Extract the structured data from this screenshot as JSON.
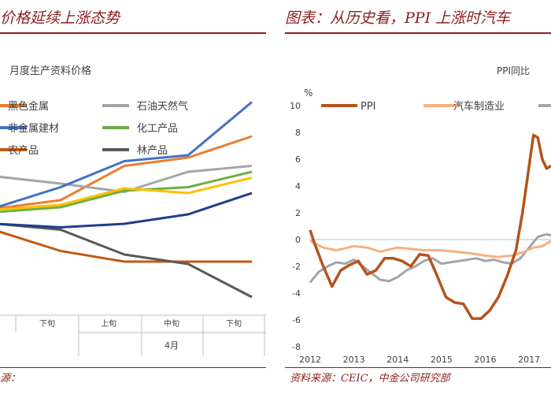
{
  "left_panel": {
    "header": "价格延续上涨态势",
    "source": "源："
  },
  "right_panel": {
    "header": "图表：从历史看，PPI 上涨时汽车",
    "source": "资料来源：CEIC，中金公司研究部"
  },
  "colors": {
    "title_red": "#8c1d1d",
    "black_metal": "#ed7d31",
    "oil_gas": "#a5a5a5",
    "non_metal": "#4472c4",
    "chemical": "#70ad47",
    "farm": "#c55a11",
    "forest": "#595959",
    "extra_yellow": "#ffc000",
    "extra_navy": "#1f3e8a",
    "ppi": "#b5541c",
    "auto": "#f4b183",
    "grey3": "#a5a5a5"
  },
  "chart_data": [
    {
      "type": "line",
      "title": "月度生产资料价格",
      "categories": [
        "",
        "下旬",
        "上旬",
        "中旬",
        "下旬"
      ],
      "group_label": "4月",
      "legend": [
        "黑色金属",
        "石油天然气",
        "非金属建材",
        "化工产品",
        "农产品",
        "林产品"
      ],
      "series": [
        {
          "name": "黑色金属",
          "color_key": "black_metal",
          "values": [
            -0.3,
            0.4,
            3.3,
            4.0,
            5.8
          ]
        },
        {
          "name": "石油天然气",
          "color_key": "oil_gas",
          "values": [
            2.4,
            1.8,
            1.1,
            2.8,
            3.3
          ]
        },
        {
          "name": "非金属建材",
          "color_key": "non_metal",
          "values": [
            -0.2,
            1.5,
            3.7,
            4.2,
            8.7
          ]
        },
        {
          "name": "化工产品",
          "color_key": "chemical",
          "values": [
            -0.6,
            -0.2,
            1.2,
            1.5,
            2.8
          ]
        },
        {
          "name": "农产品",
          "color_key": "farm",
          "values": [
            -2.2,
            -3.9,
            -4.8,
            -4.8,
            -4.8
          ]
        },
        {
          "name": "林产品",
          "color_key": "forest",
          "values": [
            -1.6,
            -2.1,
            -4.2,
            -5.0,
            -7.8
          ]
        },
        {
          "color_key": "extra_yellow",
          "values": [
            -0.4,
            0.0,
            1.4,
            1.0,
            2.3
          ]
        },
        {
          "color_key": "extra_navy",
          "values": [
            -1.6,
            -1.9,
            -1.6,
            -0.8,
            1.0
          ]
        }
      ],
      "ylim": [
        -9,
        10
      ]
    },
    {
      "type": "line",
      "title": "PPI同比",
      "ylabel": "%",
      "ylim": [
        -8,
        10
      ],
      "yticks": [
        -8,
        -6,
        -4,
        -2,
        0,
        2,
        4,
        6,
        8,
        10
      ],
      "xticks": [
        "2012",
        "2013",
        "2014",
        "2015",
        "2016",
        "2017"
      ],
      "xrange": [
        2012.0,
        2017.5
      ],
      "legend": [
        "PPI",
        "汽车制造业"
      ],
      "series": [
        {
          "name": "PPI",
          "color_key": "ppi",
          "x": [
            2012.0,
            2012.1,
            2012.3,
            2012.5,
            2012.7,
            2012.9,
            2013.1,
            2013.3,
            2013.5,
            2013.7,
            2013.9,
            2014.1,
            2014.3,
            2014.5,
            2014.7,
            2014.9,
            2015.1,
            2015.3,
            2015.5,
            2015.7,
            2015.9,
            2016.1,
            2016.3,
            2016.5,
            2016.7,
            2016.85,
            2017.0,
            2017.1,
            2017.2,
            2017.3,
            2017.4,
            2017.5
          ],
          "values": [
            0.7,
            -0.3,
            -2.0,
            -3.5,
            -2.3,
            -1.9,
            -1.6,
            -2.6,
            -2.3,
            -1.4,
            -1.4,
            -1.6,
            -2.0,
            -1.1,
            -1.2,
            -2.7,
            -4.3,
            -4.7,
            -4.8,
            -5.9,
            -5.9,
            -5.3,
            -4.3,
            -2.7,
            -0.8,
            2.0,
            5.5,
            7.8,
            7.6,
            6.0,
            5.3,
            5.5
          ]
        },
        {
          "name": "汽车制造业",
          "color_key": "auto",
          "x": [
            2012.0,
            2012.3,
            2012.6,
            2013.0,
            2013.3,
            2013.6,
            2014.0,
            2014.3,
            2014.6,
            2015.0,
            2015.3,
            2015.6,
            2016.0,
            2016.3,
            2016.6,
            2016.9,
            2017.1,
            2017.3,
            2017.5
          ],
          "values": [
            -0.1,
            -0.6,
            -0.8,
            -0.5,
            -0.6,
            -0.9,
            -0.6,
            -0.7,
            -0.8,
            -0.8,
            -0.9,
            -1.0,
            -1.2,
            -1.3,
            -1.2,
            -0.9,
            -0.6,
            -0.5,
            -0.1
          ]
        },
        {
          "color_key": "grey3",
          "x": [
            2012.0,
            2012.2,
            2012.4,
            2012.6,
            2012.8,
            2013.0,
            2013.2,
            2013.4,
            2013.6,
            2013.8,
            2014.0,
            2014.2,
            2014.4,
            2014.6,
            2014.8,
            2015.0,
            2015.2,
            2015.4,
            2015.6,
            2015.8,
            2016.0,
            2016.2,
            2016.4,
            2016.6,
            2016.8,
            2017.0,
            2017.2,
            2017.4,
            2017.5
          ],
          "values": [
            -3.2,
            -2.4,
            -2.0,
            -1.7,
            -1.8,
            -1.5,
            -2.0,
            -2.5,
            -3.0,
            -3.1,
            -2.8,
            -2.3,
            -2.0,
            -1.6,
            -1.4,
            -1.8,
            -1.7,
            -1.6,
            -1.5,
            -1.4,
            -1.6,
            -1.5,
            -1.7,
            -1.8,
            -1.4,
            -0.6,
            0.2,
            0.4,
            0.3
          ]
        }
      ]
    }
  ]
}
